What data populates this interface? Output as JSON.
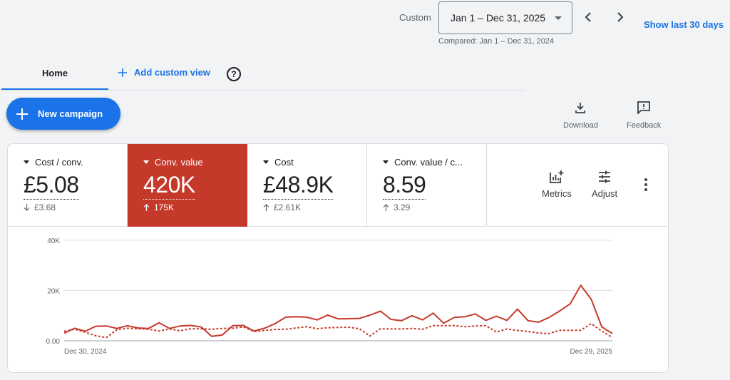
{
  "header": {
    "date_mode_label": "Custom",
    "date_range": "Jan 1 – Dec 31, 2025",
    "compared_text": "Compared: Jan 1 – Dec 31, 2024",
    "show_last_label": "Show last 30 days",
    "prev_icon": "chevron-left-icon",
    "next_icon": "chevron-right-icon"
  },
  "tabs": {
    "home": "Home",
    "add_custom_view": "Add custom view"
  },
  "actions": {
    "new_campaign": "New campaign",
    "download": "Download",
    "feedback": "Feedback"
  },
  "metrics": [
    {
      "label": "Cost / conv.",
      "value": "£5.08",
      "change": "£3.68",
      "direction": "down",
      "active": false
    },
    {
      "label": "Conv. value",
      "value": "420K",
      "change": "175K",
      "direction": "up",
      "active": true,
      "color": "#c5392b"
    },
    {
      "label": "Cost",
      "value": "£48.9K",
      "change": "£2.61K",
      "direction": "up",
      "active": false
    },
    {
      "label": "Conv. value / c...",
      "value": "8.59",
      "change": "3.29",
      "direction": "up",
      "active": false
    }
  ],
  "controls": {
    "metrics_label": "Metrics",
    "adjust_label": "Adjust"
  },
  "chart_data": {
    "type": "line",
    "ylim": [
      0,
      40000
    ],
    "y_ticks": [
      "0.00",
      "20K",
      "40K"
    ],
    "x_labels": [
      "Dec 30, 2024",
      "Dec 29, 2025"
    ],
    "grid": true,
    "series": [
      {
        "style": "solid",
        "color": "#c5392b",
        "values": [
          3000,
          5000,
          3800,
          5800,
          5900,
          4900,
          6000,
          5100,
          4900,
          7200,
          4900,
          5900,
          6100,
          5500,
          1800,
          2300,
          6000,
          6100,
          3900,
          5000,
          6800,
          9400,
          9600,
          9400,
          8300,
          10200,
          8700,
          8800,
          8900,
          10200,
          11800,
          8500,
          8000,
          10000,
          8300,
          11000,
          7000,
          9300,
          9600,
          10700,
          8100,
          9800,
          8100,
          12600,
          8000,
          7400,
          9300,
          11900,
          14700,
          22100,
          16500,
          5500,
          2900
        ]
      },
      {
        "style": "dashed",
        "color": "#c5392b",
        "values": [
          3800,
          4600,
          3400,
          2000,
          1300,
          4400,
          5000,
          4800,
          4600,
          3900,
          4700,
          4000,
          4800,
          4800,
          4600,
          4900,
          5000,
          5500,
          3700,
          4100,
          4500,
          4600,
          5100,
          5600,
          4800,
          5200,
          5300,
          5400,
          4800,
          1900,
          4800,
          4700,
          4700,
          4900,
          4600,
          6000,
          6000,
          6000,
          5600,
          5900,
          6000,
          3500,
          4700,
          4100,
          3700,
          3100,
          2900,
          4200,
          4200,
          4200,
          6800,
          3900,
          1300
        ]
      }
    ]
  }
}
